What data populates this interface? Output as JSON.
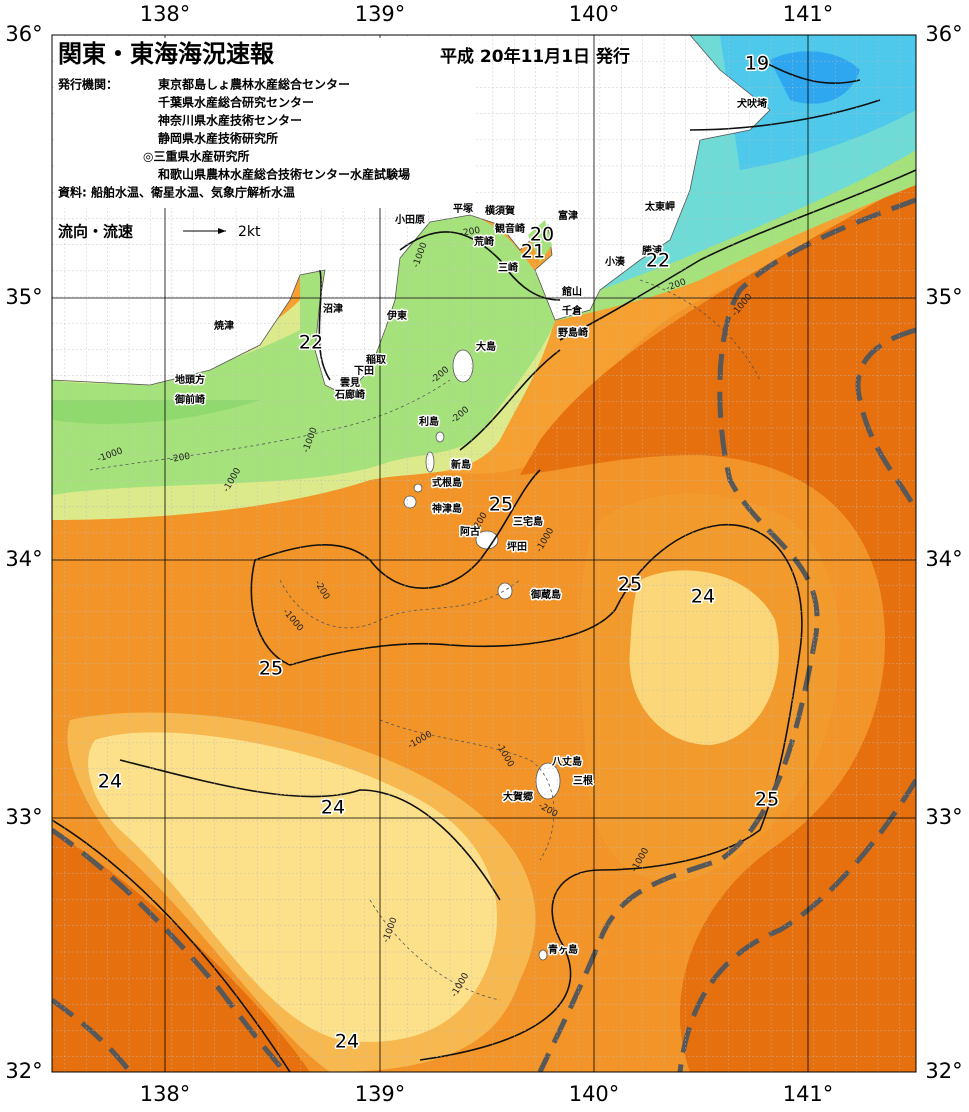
{
  "header": {
    "title": "関東・東海海況速報",
    "date": "平成 20年11月1日 発行"
  },
  "issuers": {
    "label": "発行機関：",
    "orgs": [
      "東京都島しょ農林水産総合センター",
      "千葉県水産総合研究センター",
      "神奈川県水産技術センター",
      "静岡県水産技術研究所",
      "◎三重県水産研究所",
      "和歌山県農林水産総合技術センター水産試験場"
    ]
  },
  "source": "資料: 船舶水温、衛星水温、気象庁解析水温",
  "legend": {
    "label": "流向・流速",
    "scale": "2kt"
  },
  "axes": {
    "lon_labels": [
      "138°",
      "139°",
      "140°",
      "141°"
    ],
    "lat_labels": [
      "36°",
      "35°",
      "34°",
      "33°",
      "32°"
    ]
  },
  "places": [
    "小田原",
    "平塚",
    "横須賀",
    "観音崎",
    "荒崎",
    "三崎",
    "富津",
    "太東岬",
    "勝浦",
    "小湊",
    "館山",
    "千倉",
    "野島崎",
    "沼津",
    "伊東",
    "焼津",
    "稲取",
    "下田",
    "雲見",
    "石廊崎",
    "地頭方",
    "御前崎",
    "大島",
    "利島",
    "新島",
    "式根島",
    "神津島",
    "阿古",
    "三宅島",
    "坪田",
    "御蔵島",
    "八丈島",
    "三根",
    "大賀郷",
    "青ヶ島",
    "犬吠埼"
  ],
  "temperature_labels": [
    "19",
    "20",
    "21",
    "22",
    "22",
    "25",
    "25",
    "24",
    "25",
    "24",
    "24",
    "25",
    "24"
  ],
  "depth_labels": [
    "-1000",
    "-200",
    "-1000",
    "-200",
    "-1000",
    "-1000",
    "-200",
    "-200",
    "-1000",
    "-200",
    "-1000",
    "-200",
    "-1000",
    "-1000",
    "-1000",
    "-200",
    "-1000",
    "-1000",
    "-1000",
    "-200"
  ]
}
